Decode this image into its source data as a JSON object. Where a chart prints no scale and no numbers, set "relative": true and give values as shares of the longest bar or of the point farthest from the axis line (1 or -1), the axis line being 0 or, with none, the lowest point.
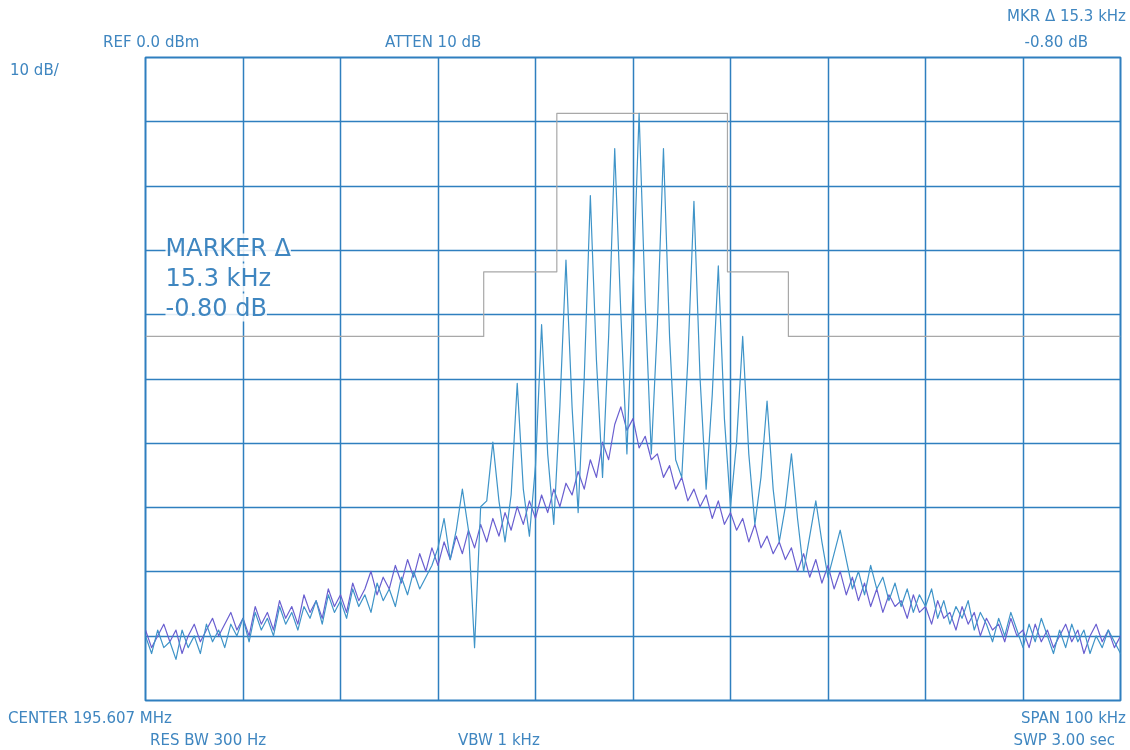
{
  "chart_data": {
    "type": "line",
    "relative": true,
    "grid": true,
    "tick_labels": false,
    "annotations": [
      "REF 0.0 dBm",
      "ATTEN 10 dB",
      "MKR Δ 15.3 kHz",
      "-0.80 dB",
      "10 dB/",
      "MARKER Δ",
      "15.3 kHz",
      "-0.80 dB",
      "CENTER 195.607 MHz",
      "RES BW 300 Hz",
      "VBW 1 kHz",
      "SPAN 100 kHz",
      "SWP 3.00 sec"
    ],
    "categories": [
      null,
      null,
      null,
      null,
      null,
      null,
      null,
      null,
      null,
      null,
      null,
      null,
      null,
      null,
      null,
      null,
      null,
      null,
      null,
      null,
      null,
      null,
      null,
      null,
      null,
      null,
      null,
      null,
      null,
      null,
      null,
      null,
      null,
      null,
      null,
      null,
      null,
      null,
      null,
      null,
      null,
      null,
      null,
      null,
      null,
      null,
      null,
      null,
      null,
      null,
      null,
      null,
      null,
      null,
      null,
      null,
      null,
      null,
      null,
      null,
      null,
      null,
      null,
      null,
      null,
      null,
      null,
      null,
      null,
      null,
      null,
      null,
      null,
      null,
      null,
      null,
      null,
      null,
      null,
      null,
      null,
      null,
      null,
      null,
      null,
      null,
      null,
      null,
      null,
      null,
      null,
      null,
      null,
      null,
      null,
      null,
      null,
      null,
      null,
      null,
      null,
      null,
      null,
      null,
      null,
      null,
      null,
      null,
      null,
      null,
      null,
      null,
      null,
      null,
      null,
      null,
      null,
      null,
      null,
      null,
      null,
      null,
      null,
      null,
      null,
      null,
      null,
      null,
      null,
      null,
      null,
      null,
      null,
      null,
      null,
      null,
      null,
      null,
      null,
      null,
      null,
      null,
      null,
      null,
      null,
      null,
      null,
      null,
      null,
      null,
      null,
      null,
      null,
      null,
      null,
      null,
      null,
      null,
      null,
      null,
      null
    ],
    "series": [
      {
        "type": "step",
        "color": "#a8a8a8",
        "values": [
          0.62,
          0.62,
          0.62,
          0.62,
          0.62,
          0.62,
          0.62,
          0.62,
          0.62,
          0.62,
          0.62,
          0.62,
          0.62,
          0.62,
          0.62,
          0.62,
          0.62,
          0.62,
          0.62,
          0.62,
          0.62,
          0.62,
          0.62,
          0.62,
          0.62,
          0.62,
          0.62,
          0.62,
          0.62,
          0.62,
          0.62,
          0.62,
          0.62,
          0.62,
          0.62,
          0.62,
          0.62,
          0.62,
          0.62,
          0.62,
          0.62,
          0.62,
          0.62,
          0.62,
          0.62,
          0.62,
          0.62,
          0.62,
          0.62,
          0.62,
          0.62,
          0.62,
          0.62,
          0.62,
          0.62,
          0.62,
          0.73,
          0.73,
          0.73,
          0.73,
          0.73,
          0.73,
          0.73,
          0.73,
          0.73,
          0.73,
          0.73,
          0.73,
          1.0,
          1.0,
          1.0,
          1.0,
          1.0,
          1.0,
          1.0,
          1.0,
          1.0,
          1.0,
          1.0,
          1.0,
          1.0,
          1.0,
          1.0,
          1.0,
          1.0,
          1.0,
          1.0,
          1.0,
          1.0,
          1.0,
          1.0,
          1.0,
          1.0,
          1.0,
          1.0,
          1.0,
          0.73,
          0.73,
          0.73,
          0.73,
          0.73,
          0.73,
          0.73,
          0.73,
          0.73,
          0.73,
          0.62,
          0.62,
          0.62,
          0.62,
          0.62,
          0.62,
          0.62,
          0.62,
          0.62,
          0.62,
          0.62,
          0.62,
          0.62,
          0.62,
          0.62,
          0.62,
          0.62,
          0.62,
          0.62,
          0.62,
          0.62,
          0.62,
          0.62,
          0.62,
          0.62,
          0.62,
          0.62,
          0.62,
          0.62,
          0.62,
          0.62,
          0.62,
          0.62,
          0.62,
          0.62,
          0.62,
          0.62,
          0.62,
          0.62,
          0.62,
          0.62,
          0.62,
          0.62,
          0.62,
          0.62,
          0.62,
          0.62,
          0.62,
          0.62,
          0.62,
          0.62,
          0.62,
          0.62,
          0.62,
          0.62
        ]
      },
      {
        "color": "#6a5fd0",
        "values": [
          0.12,
          0.09,
          0.11,
          0.13,
          0.1,
          0.12,
          0.08,
          0.11,
          0.13,
          0.1,
          0.12,
          0.14,
          0.11,
          0.13,
          0.15,
          0.12,
          0.14,
          0.11,
          0.16,
          0.13,
          0.15,
          0.12,
          0.17,
          0.14,
          0.16,
          0.13,
          0.18,
          0.15,
          0.17,
          0.14,
          0.19,
          0.16,
          0.18,
          0.15,
          0.2,
          0.17,
          0.19,
          0.22,
          0.18,
          0.21,
          0.19,
          0.23,
          0.2,
          0.24,
          0.21,
          0.25,
          0.22,
          0.26,
          0.23,
          0.27,
          0.24,
          0.28,
          0.25,
          0.29,
          0.26,
          0.3,
          0.27,
          0.31,
          0.28,
          0.32,
          0.29,
          0.33,
          0.3,
          0.34,
          0.31,
          0.35,
          0.32,
          0.36,
          0.33,
          0.37,
          0.35,
          0.39,
          0.36,
          0.41,
          0.38,
          0.44,
          0.41,
          0.47,
          0.5,
          0.46,
          0.48,
          0.43,
          0.45,
          0.41,
          0.42,
          0.38,
          0.4,
          0.36,
          0.38,
          0.34,
          0.36,
          0.33,
          0.35,
          0.31,
          0.34,
          0.3,
          0.32,
          0.29,
          0.31,
          0.27,
          0.3,
          0.26,
          0.28,
          0.25,
          0.27,
          0.24,
          0.26,
          0.22,
          0.25,
          0.21,
          0.24,
          0.2,
          0.23,
          0.19,
          0.22,
          0.18,
          0.21,
          0.17,
          0.2,
          0.16,
          0.19,
          0.15,
          0.18,
          0.16,
          0.17,
          0.14,
          0.18,
          0.15,
          0.16,
          0.13,
          0.17,
          0.14,
          0.15,
          0.12,
          0.16,
          0.13,
          0.15,
          0.11,
          0.14,
          0.12,
          0.13,
          0.1,
          0.14,
          0.11,
          0.12,
          0.09,
          0.13,
          0.1,
          0.12,
          0.09,
          0.11,
          0.13,
          0.1,
          0.12,
          0.08,
          0.11,
          0.13,
          0.1,
          0.12,
          0.09,
          0.11
        ]
      },
      {
        "color": "#3f94c8",
        "values": [
          0.11,
          0.08,
          0.12,
          0.09,
          0.1,
          0.07,
          0.12,
          0.09,
          0.11,
          0.08,
          0.13,
          0.1,
          0.12,
          0.09,
          0.13,
          0.11,
          0.14,
          0.1,
          0.15,
          0.12,
          0.14,
          0.11,
          0.16,
          0.13,
          0.15,
          0.12,
          0.16,
          0.14,
          0.17,
          0.13,
          0.18,
          0.15,
          0.17,
          0.14,
          0.19,
          0.16,
          0.18,
          0.15,
          0.2,
          0.17,
          0.19,
          0.16,
          0.21,
          0.18,
          0.22,
          0.19,
          0.21,
          0.23,
          0.26,
          0.31,
          0.24,
          0.29,
          0.36,
          0.29,
          0.09,
          0.33,
          0.34,
          0.44,
          0.34,
          0.27,
          0.35,
          0.54,
          0.36,
          0.28,
          0.4,
          0.64,
          0.42,
          0.3,
          0.5,
          0.75,
          0.5,
          0.32,
          0.55,
          0.86,
          0.58,
          0.38,
          0.62,
          0.94,
          0.66,
          0.42,
          0.7,
          1.0,
          0.68,
          0.42,
          0.64,
          0.94,
          0.62,
          0.41,
          0.38,
          0.58,
          0.85,
          0.55,
          0.36,
          0.52,
          0.74,
          0.48,
          0.33,
          0.44,
          0.62,
          0.42,
          0.3,
          0.38,
          0.51,
          0.36,
          0.27,
          0.33,
          0.42,
          0.31,
          0.22,
          0.28,
          0.34,
          0.27,
          0.21,
          0.25,
          0.29,
          0.24,
          0.19,
          0.22,
          0.18,
          0.23,
          0.19,
          0.21,
          0.17,
          0.2,
          0.16,
          0.19,
          0.15,
          0.18,
          0.16,
          0.19,
          0.14,
          0.17,
          0.13,
          0.16,
          0.14,
          0.17,
          0.12,
          0.15,
          0.13,
          0.1,
          0.14,
          0.11,
          0.15,
          0.12,
          0.09,
          0.13,
          0.1,
          0.14,
          0.11,
          0.08,
          0.12,
          0.09,
          0.13,
          0.1,
          0.12,
          0.08,
          0.11,
          0.09,
          0.12,
          0.1,
          0.08
        ]
      }
    ]
  }
}
